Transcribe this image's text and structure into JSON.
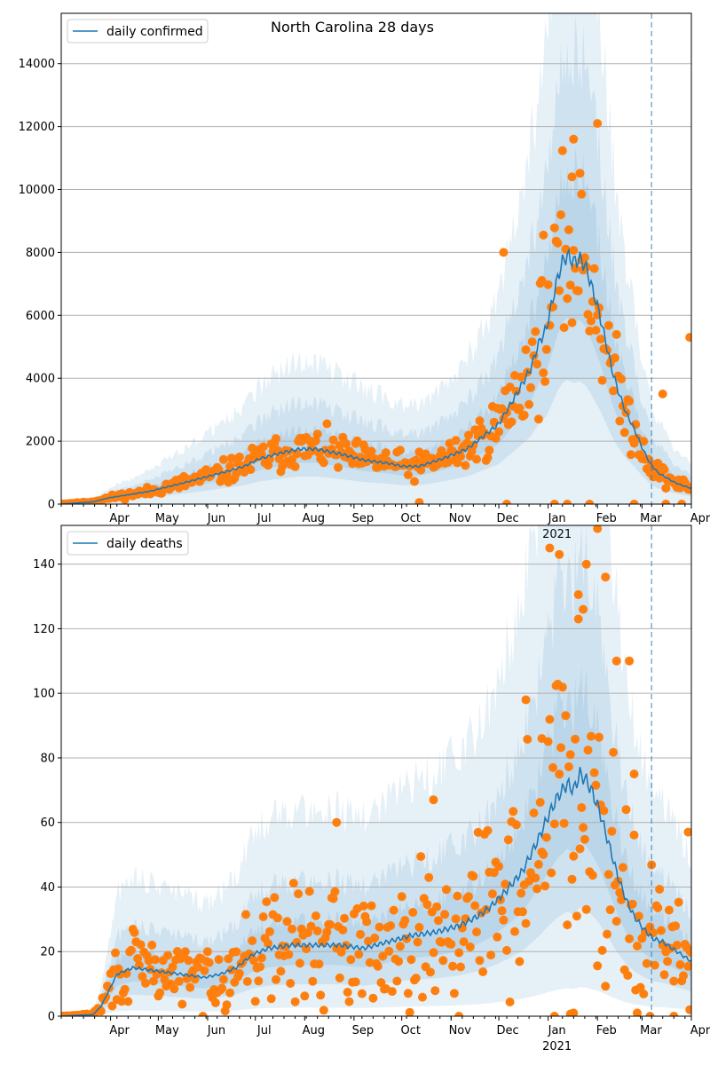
{
  "figure": {
    "title": "North Carolina 28 days",
    "month_labels": [
      "Apr",
      "May",
      "Jun",
      "Jul",
      "Aug",
      "Sep",
      "Oct",
      "Nov",
      "Dec",
      "Jan",
      "Feb",
      "Mar",
      "Apr"
    ],
    "year_label": "2021"
  },
  "colors": {
    "line": "#1f77b4",
    "points": "#ff7f0e",
    "band": "#1f77b4",
    "grid": "#b0b0b0",
    "vline": "#1f77b4"
  },
  "chart_data": [
    {
      "type": "line",
      "title": "North Carolina 28 days",
      "legend": {
        "label": "daily confirmed",
        "placement": "top-left"
      },
      "x_range": [
        "2020-03-01",
        "2021-04-01"
      ],
      "ylim": [
        0,
        15600
      ],
      "yticks": [
        0,
        2000,
        4000,
        6000,
        8000,
        10000,
        12000,
        14000
      ],
      "grid": "horizontal",
      "vline_date": "2021-03-07",
      "median": [
        [
          0,
          0
        ],
        [
          20,
          70
        ],
        [
          30,
          200
        ],
        [
          40,
          280
        ],
        [
          55,
          400
        ],
        [
          75,
          650
        ],
        [
          90,
          850
        ],
        [
          105,
          1050
        ],
        [
          115,
          1200
        ],
        [
          125,
          1450
        ],
        [
          140,
          1650
        ],
        [
          150,
          1750
        ],
        [
          160,
          1750
        ],
        [
          175,
          1600
        ],
        [
          190,
          1400
        ],
        [
          205,
          1300
        ],
        [
          215,
          1200
        ],
        [
          225,
          1200
        ],
        [
          240,
          1450
        ],
        [
          255,
          1750
        ],
        [
          265,
          2150
        ],
        [
          275,
          2550
        ],
        [
          285,
          3400
        ],
        [
          295,
          4300
        ],
        [
          300,
          5100
        ],
        [
          305,
          5600
        ],
        [
          308,
          6300
        ],
        [
          312,
          7200
        ],
        [
          315,
          7700
        ],
        [
          318,
          7900
        ],
        [
          322,
          7700
        ],
        [
          326,
          7800
        ],
        [
          330,
          7500
        ],
        [
          334,
          6800
        ],
        [
          338,
          6100
        ],
        [
          342,
          5200
        ],
        [
          346,
          4300
        ],
        [
          350,
          3600
        ],
        [
          355,
          2900
        ],
        [
          360,
          2400
        ],
        [
          365,
          1800
        ],
        [
          370,
          1300
        ],
        [
          375,
          1000
        ],
        [
          380,
          850
        ],
        [
          385,
          700
        ],
        [
          390,
          600
        ],
        [
          396,
          500
        ]
      ],
      "band_levels": [
        {
          "factor_low": 0.75,
          "factor_high": 1.35
        },
        {
          "factor_low": 0.5,
          "factor_high": 1.85
        },
        {
          "factor_low": 0.0,
          "factor_high": 2.6
        }
      ],
      "observed": {
        "base": "median",
        "spread": 0.28,
        "seed": 11
      },
      "outliers": [
        [
          322,
          11600
        ],
        [
          337,
          12100
        ],
        [
          278,
          8000
        ],
        [
          303,
          8550
        ],
        [
          395,
          5300
        ],
        [
          321,
          10400
        ],
        [
          327,
          9850
        ],
        [
          378,
          3500
        ],
        [
          225,
          50
        ],
        [
          280,
          0
        ],
        [
          310,
          0
        ],
        [
          318,
          0
        ],
        [
          332,
          0
        ],
        [
          360,
          0
        ],
        [
          380,
          0
        ],
        [
          390,
          0
        ]
      ]
    },
    {
      "type": "line",
      "title": "",
      "legend": {
        "label": "daily deaths",
        "placement": "top-left"
      },
      "x_range": [
        "2020-03-01",
        "2021-04-01"
      ],
      "ylim": [
        0,
        152
      ],
      "yticks": [
        0,
        20,
        40,
        60,
        80,
        100,
        120,
        140
      ],
      "grid": "horizontal",
      "vline_date": "2021-03-07",
      "median": [
        [
          0,
          0
        ],
        [
          20,
          0.5
        ],
        [
          25,
          3
        ],
        [
          30,
          8
        ],
        [
          35,
          13
        ],
        [
          45,
          15
        ],
        [
          60,
          14
        ],
        [
          75,
          13
        ],
        [
          90,
          12
        ],
        [
          100,
          13
        ],
        [
          110,
          15
        ],
        [
          120,
          19
        ],
        [
          130,
          21
        ],
        [
          145,
          22
        ],
        [
          160,
          22
        ],
        [
          175,
          22
        ],
        [
          190,
          21
        ],
        [
          205,
          23
        ],
        [
          220,
          25
        ],
        [
          235,
          26
        ],
        [
          250,
          28
        ],
        [
          262,
          31
        ],
        [
          270,
          34
        ],
        [
          280,
          39
        ],
        [
          290,
          45
        ],
        [
          300,
          55
        ],
        [
          306,
          62
        ],
        [
          312,
          68
        ],
        [
          318,
          72
        ],
        [
          322,
          70
        ],
        [
          326,
          75
        ],
        [
          330,
          73
        ],
        [
          334,
          69
        ],
        [
          338,
          64
        ],
        [
          342,
          57
        ],
        [
          346,
          50
        ],
        [
          350,
          43
        ],
        [
          355,
          36
        ],
        [
          360,
          31
        ],
        [
          366,
          27
        ],
        [
          372,
          24
        ],
        [
          378,
          23
        ],
        [
          384,
          21
        ],
        [
          390,
          19
        ],
        [
          396,
          17
        ]
      ],
      "band_levels": [
        {
          "factor_low": 0.72,
          "factor_high": 1.35
        },
        {
          "factor_low": 0.45,
          "factor_high": 1.9
        },
        {
          "factor_low": 0.12,
          "factor_high": 2.9
        }
      ],
      "observed": {
        "base": "median",
        "spread": 0.6,
        "seed": 29
      },
      "outliers": [
        [
          173,
          60
        ],
        [
          234,
          67
        ],
        [
          307,
          145
        ],
        [
          313,
          143
        ],
        [
          330,
          140
        ],
        [
          337,
          151
        ],
        [
          342,
          136
        ],
        [
          328,
          126
        ],
        [
          325,
          123
        ],
        [
          349,
          110
        ],
        [
          357,
          110
        ],
        [
          292,
          98
        ],
        [
          302,
          86
        ],
        [
          360,
          75
        ],
        [
          394,
          57
        ],
        [
          320,
          81
        ],
        [
          250,
          0
        ],
        [
          310,
          0
        ],
        [
          322,
          1
        ],
        [
          362,
          1
        ],
        [
          370,
          0
        ],
        [
          385,
          0
        ],
        [
          395,
          2
        ]
      ]
    }
  ]
}
